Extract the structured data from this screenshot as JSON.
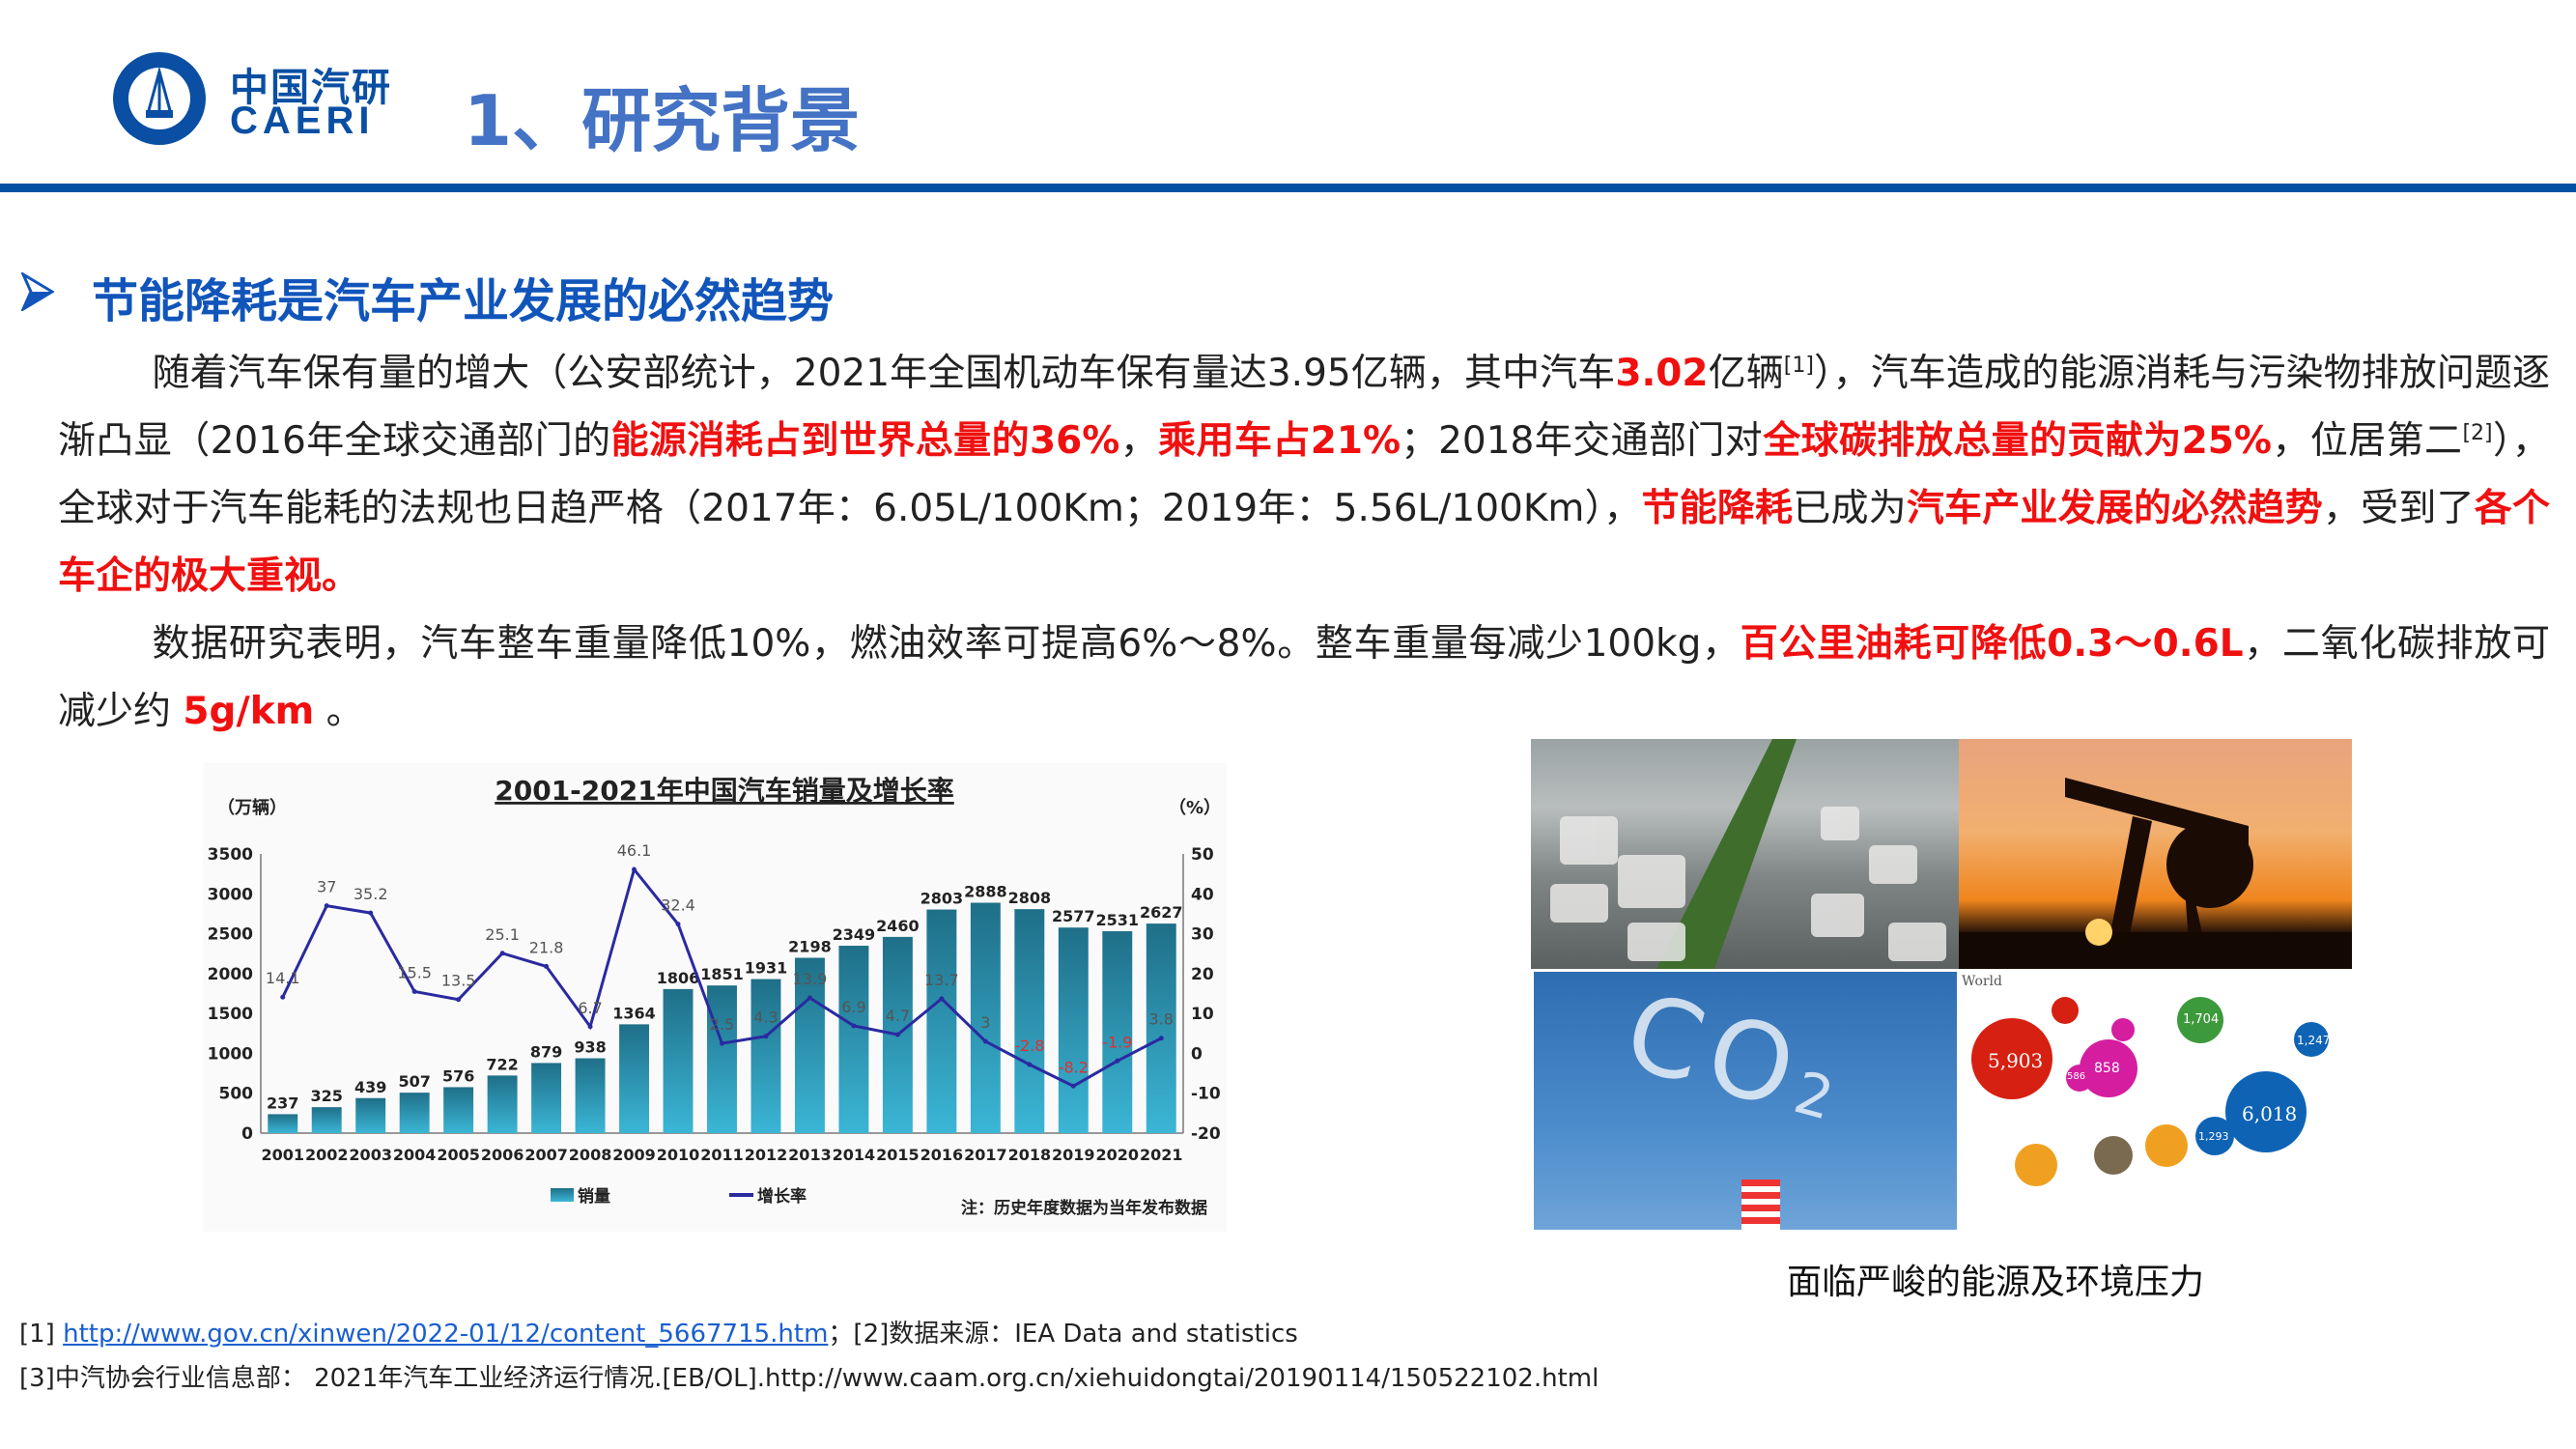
{
  "header": {
    "logo_text": "中国汽车工程研究院 CAERI",
    "brand_cn": "中国汽研",
    "brand_en": "CAERI",
    "title": "1、研究背景"
  },
  "colors": {
    "brand": "#0052a5",
    "title": "#4472c4",
    "highlight": "#f01010",
    "bar": "#2a9bbd",
    "line": "#2a2aa0"
  },
  "section": {
    "bullet_icon": "arrow-right-icon",
    "heading": "节能降耗是汽车产业发展的必然趋势"
  },
  "body": {
    "paragraphs": [
      [
        {
          "t": "随着汽车保有量的增大（公安部统计，2021年全国机动车保有量达3.95亿辆，其中汽车",
          "s": "n"
        },
        {
          "t": "3.02",
          "s": "r"
        },
        {
          "t": "亿辆",
          "s": "n"
        },
        {
          "t": "[1]",
          "s": "sup"
        },
        {
          "t": "），汽车造成的能源消耗与污染物排放问题逐渐凸显（2016年全球交通部门的",
          "s": "n"
        },
        {
          "t": "能源消耗占到世界总量的36%",
          "s": "r"
        },
        {
          "t": "，",
          "s": "n"
        },
        {
          "t": "乘用车占21%",
          "s": "r"
        },
        {
          "t": "；2018年交通部门对",
          "s": "n"
        },
        {
          "t": "全球碳排放总量的贡献为25%",
          "s": "r"
        },
        {
          "t": "，位居第二",
          "s": "n"
        },
        {
          "t": "[2]",
          "s": "sup"
        },
        {
          "t": "），全球对于汽车能耗的法规也日趋严格（2017年：6.05L/100Km；2019年：5.56L/100Km），",
          "s": "n"
        },
        {
          "t": "节能降耗",
          "s": "r"
        },
        {
          "t": "已成为",
          "s": "n"
        },
        {
          "t": "汽车产业发展的必然趋势",
          "s": "r"
        },
        {
          "t": "，受到了",
          "s": "n"
        },
        {
          "t": "各个车企的极大重视。",
          "s": "r"
        }
      ],
      [
        {
          "t": "数据研究表明，汽车整车重量降低10%，燃油效率可提高6%～8%。整车重量每减少100kg，",
          "s": "n"
        },
        {
          "t": "百公里油耗可降低0.3～0.6L",
          "s": "r"
        },
        {
          "t": "，二氧化碳排放可减少约 ",
          "s": "n"
        },
        {
          "t": "5g/km",
          "s": "r"
        },
        {
          "t": " 。",
          "s": "n"
        }
      ]
    ]
  },
  "chart_data": {
    "type": "bar+line",
    "title": "2001-2021年中国汽车销量及增长率",
    "ylabel_left": "（万辆）",
    "ylabel_right": "（%）",
    "categories": [
      "2001",
      "2002",
      "2003",
      "2004",
      "2005",
      "2006",
      "2007",
      "2008",
      "2009",
      "2010",
      "2011",
      "2012",
      "2013",
      "2014",
      "2015",
      "2016",
      "2017",
      "2018",
      "2019",
      "2020",
      "2021"
    ],
    "series": [
      {
        "name": "销量",
        "type": "bar",
        "axis": "left",
        "values": [
          237,
          325,
          439,
          507,
          576,
          722,
          879,
          938,
          1364,
          1806,
          1851,
          1931,
          2198,
          2349,
          2460,
          2803,
          2888,
          2808,
          2577,
          2531,
          2627
        ]
      },
      {
        "name": "增长率",
        "type": "line",
        "axis": "right",
        "values": [
          14.1,
          37,
          35.2,
          15.5,
          13.5,
          25.1,
          21.8,
          6.7,
          46.1,
          32.4,
          2.5,
          4.3,
          13.9,
          6.9,
          4.7,
          13.7,
          3,
          -2.8,
          -8.2,
          -1.9,
          3.8
        ]
      }
    ],
    "ylim_left": [
      0,
      3500
    ],
    "yticks_left": [
      "0",
      "500",
      "1000",
      "1500",
      "2000",
      "2500",
      "3000",
      "3500"
    ],
    "ylim_right": [
      -20,
      50
    ],
    "yticks_right": [
      "-20",
      "-10",
      "0",
      "10",
      "20",
      "30",
      "40",
      "50"
    ],
    "grid": false,
    "legend": "bottom",
    "note": "注：历史年度数据为当年发布数据"
  },
  "photos": {
    "caption": "面临严峻的能源及环境压力",
    "items": [
      "traffic-jam-photo",
      "oil-pump-sunset-photo",
      "co2-smoke-photo",
      "carbon-emissions-bubble-chart"
    ],
    "co2_text": "CO",
    "co2_sub": "2",
    "bubble_labels": [
      "World",
      "5,903",
      "6,018",
      "1,704",
      "1,247",
      "858",
      "586",
      "1,293"
    ]
  },
  "footer": {
    "ref1_prefix": "[1] ",
    "ref1_link": "http://www.gov.cn/xinwen/2022-01/12/content_5667715.htm",
    "ref1_suffix": "；[2]数据来源：IEA Data and statistics",
    "ref3": "[3]中汽协会行业信息部： 2021年汽车工业经济运行情况.[EB/OL].http://www.caam.org.cn/xiehuidongtai/20190114/150522102.html"
  }
}
